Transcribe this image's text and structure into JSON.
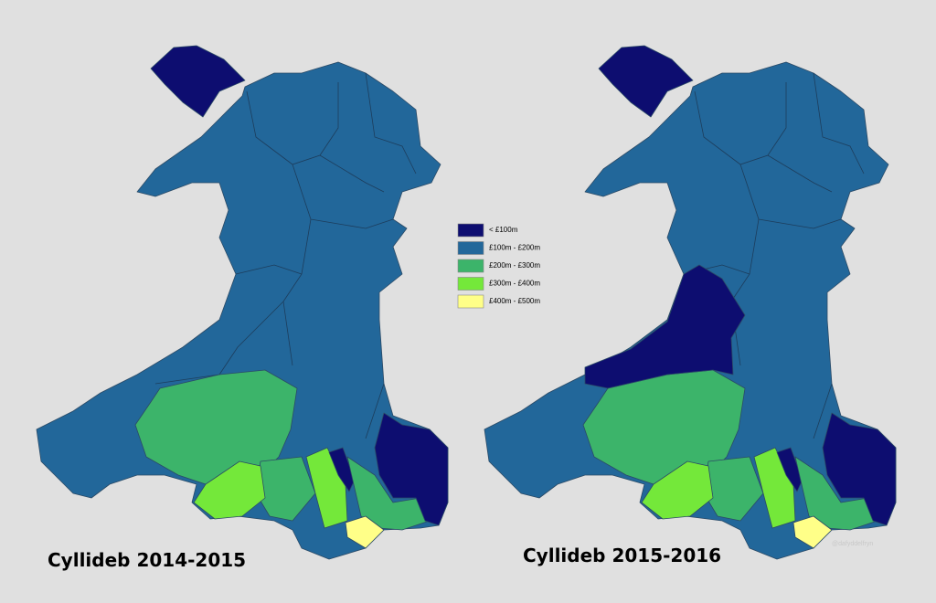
{
  "legend": {
    "items": [
      {
        "label": "< £100m",
        "color": "#0d0d70"
      },
      {
        "label": "£100m - £200m",
        "color": "#22679a"
      },
      {
        "label": "£200m - £300m",
        "color": "#3cb46a"
      },
      {
        "label": "£300m - £400m",
        "color": "#74e83a"
      },
      {
        "label": "£400m - £500m",
        "color": "#ffff88"
      }
    ]
  },
  "maps": [
    {
      "title": "Cyllideb 2014-2015"
    },
    {
      "title": "Cyllideb 2015-2016"
    }
  ],
  "watermark": "@dafyddelfryn"
}
